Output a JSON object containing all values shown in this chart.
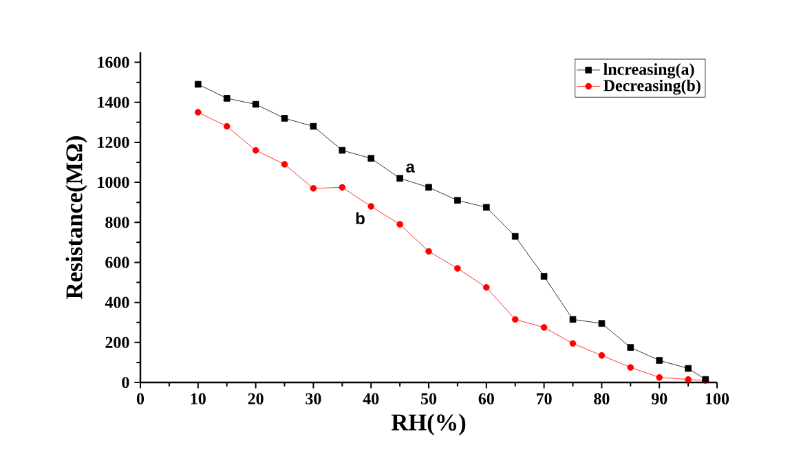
{
  "chart_data": {
    "type": "line",
    "xlabel": "RH(%)",
    "ylabel": "Resistance(MΩ)",
    "x": [
      10,
      15,
      20,
      25,
      30,
      35,
      40,
      45,
      50,
      55,
      60,
      65,
      70,
      75,
      80,
      85,
      90,
      95,
      98
    ],
    "series": [
      {
        "name": "lncreasing(a)",
        "color": "#000000",
        "marker": "square",
        "values": [
          1490,
          1420,
          1390,
          1320,
          1280,
          1160,
          1120,
          1020,
          975,
          910,
          875,
          730,
          530,
          315,
          295,
          175,
          110,
          70,
          15
        ]
      },
      {
        "name": "Decreasing(b)",
        "color": "#ff0000",
        "marker": "circle",
        "values": [
          1350,
          1280,
          1160,
          1090,
          970,
          975,
          880,
          790,
          655,
          570,
          475,
          315,
          275,
          195,
          135,
          75,
          25,
          15,
          10
        ]
      }
    ],
    "annotations": [
      "a",
      "b"
    ],
    "xlim": [
      0,
      100
    ],
    "ylim": [
      0,
      1650
    ],
    "xticks": [
      0,
      10,
      20,
      30,
      40,
      50,
      60,
      70,
      80,
      90,
      100
    ],
    "yticks": [
      0,
      200,
      400,
      600,
      800,
      1000,
      1200,
      1400,
      1600
    ],
    "legend": "top right",
    "grid": false,
    "line_style": "solid"
  }
}
